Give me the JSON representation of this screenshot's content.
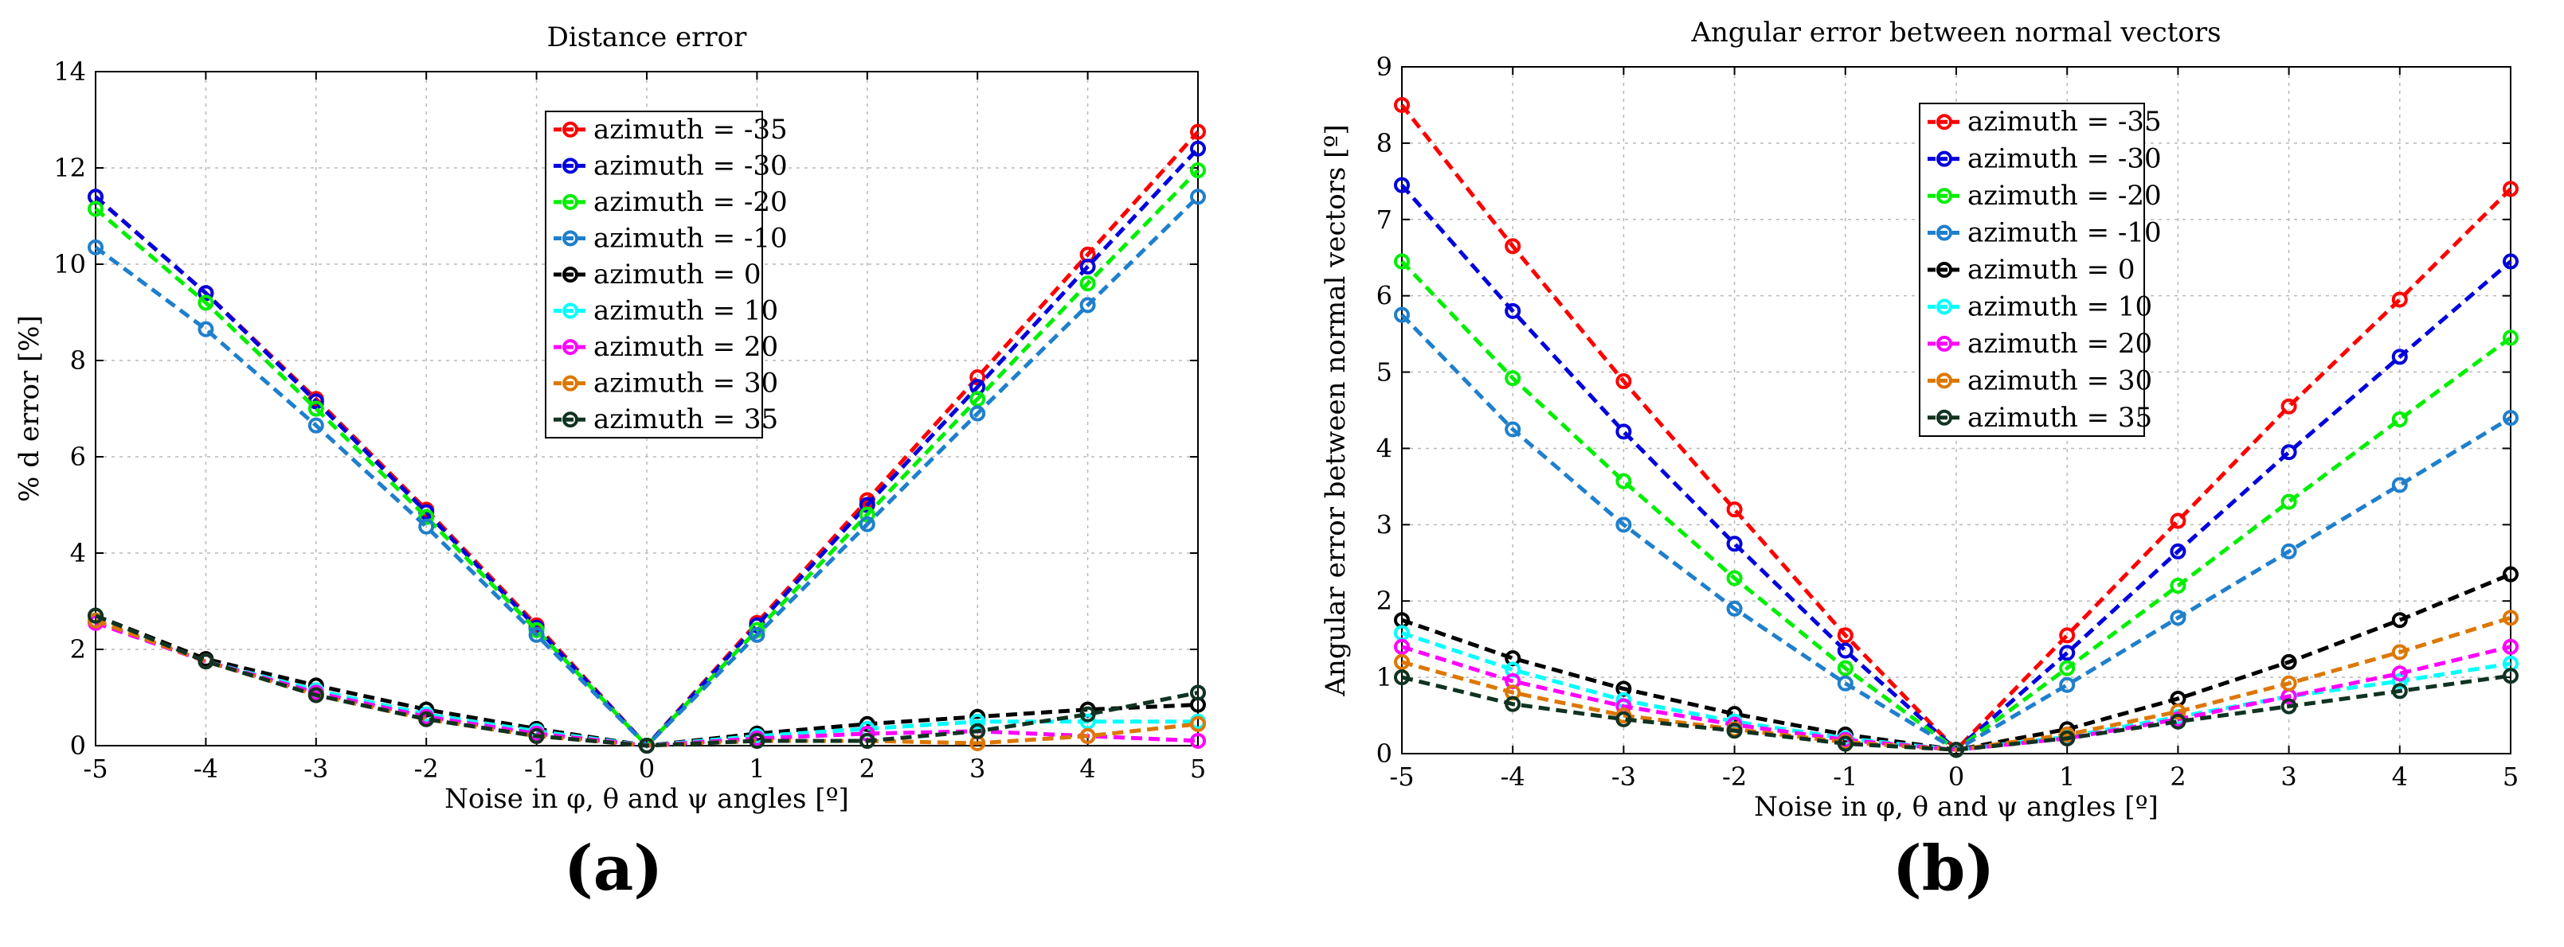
{
  "chart_data": [
    {
      "type": "line",
      "panel_label": "a",
      "title": "Distance error",
      "xlabel": "Noise in φ, θ and ψ angles [º]",
      "ylabel": "% d error [%]",
      "xlim": [
        -5,
        5
      ],
      "ylim": [
        0,
        14
      ],
      "xticks": [
        -5,
        -4,
        -3,
        -2,
        -1,
        0,
        1,
        2,
        3,
        4,
        5
      ],
      "yticks": [
        0,
        2,
        4,
        6,
        8,
        10,
        12,
        14
      ],
      "grid": true,
      "legend_position": "top-center",
      "x": [
        -5,
        -4,
        -3,
        -2,
        -1,
        0,
        1,
        2,
        3,
        4,
        5
      ],
      "series": [
        {
          "name": "azimuth = -35",
          "color": "#ff0000",
          "values": [
            11.4,
            9.4,
            7.2,
            4.9,
            2.5,
            0,
            2.55,
            5.1,
            7.65,
            10.2,
            12.75
          ]
        },
        {
          "name": "azimuth = -30",
          "color": "#0000dd",
          "values": [
            11.4,
            9.4,
            7.15,
            4.85,
            2.45,
            0,
            2.5,
            5.0,
            7.45,
            9.95,
            12.4
          ]
        },
        {
          "name": "azimuth = -20",
          "color": "#00ee00",
          "values": [
            11.15,
            9.2,
            7.0,
            4.75,
            2.4,
            0,
            2.4,
            4.8,
            7.2,
            9.6,
            11.95
          ]
        },
        {
          "name": "azimuth = -10",
          "color": "#1f7fcc",
          "values": [
            10.35,
            8.65,
            6.65,
            4.55,
            2.3,
            0,
            2.3,
            4.6,
            6.9,
            9.15,
            11.4
          ]
        },
        {
          "name": "azimuth = 0",
          "color": "#000000",
          "values": [
            2.7,
            1.8,
            1.25,
            0.75,
            0.35,
            0,
            0.25,
            0.45,
            0.6,
            0.75,
            0.85
          ]
        },
        {
          "name": "azimuth = 10",
          "color": "#00ffff",
          "values": [
            2.6,
            1.75,
            1.15,
            0.65,
            0.3,
            0,
            0.2,
            0.35,
            0.5,
            0.5,
            0.5
          ]
        },
        {
          "name": "azimuth = 20",
          "color": "#ff00ff",
          "values": [
            2.55,
            1.75,
            1.1,
            0.6,
            0.25,
            0,
            0.15,
            0.25,
            0.3,
            0.2,
            0.1
          ]
        },
        {
          "name": "azimuth = 30",
          "color": "#dd7700",
          "values": [
            2.6,
            1.75,
            1.05,
            0.55,
            0.2,
            0,
            0.1,
            0.1,
            0.05,
            0.2,
            0.45
          ]
        },
        {
          "name": "azimuth = 35",
          "color": "#113322",
          "values": [
            2.7,
            1.75,
            1.05,
            0.55,
            0.2,
            0,
            0.1,
            0.1,
            0.3,
            0.65,
            1.1
          ]
        }
      ]
    },
    {
      "type": "line",
      "panel_label": "b",
      "title": "Angular error between normal vectors",
      "xlabel": "Noise in φ, θ and ψ angles [º]",
      "ylabel": "Angular error between normal vectors [º]",
      "xlim": [
        -5,
        5
      ],
      "ylim": [
        0,
        9
      ],
      "xticks": [
        -5,
        -4,
        -3,
        -2,
        -1,
        0,
        1,
        2,
        3,
        4,
        5
      ],
      "yticks": [
        0,
        1,
        2,
        3,
        4,
        5,
        6,
        7,
        8,
        9
      ],
      "grid": true,
      "legend_position": "top-center",
      "x": [
        -5,
        -4,
        -3,
        -2,
        -1,
        0,
        1,
        2,
        3,
        4,
        5
      ],
      "series": [
        {
          "name": "azimuth = -35",
          "color": "#ff0000",
          "values": [
            8.5,
            6.65,
            4.88,
            3.2,
            1.55,
            0.05,
            1.55,
            3.05,
            4.55,
            5.95,
            7.4
          ]
        },
        {
          "name": "azimuth = -30",
          "color": "#0000dd",
          "values": [
            7.45,
            5.8,
            4.22,
            2.75,
            1.35,
            0.05,
            1.32,
            2.65,
            3.95,
            5.2,
            6.45
          ]
        },
        {
          "name": "azimuth = -20",
          "color": "#00ee00",
          "values": [
            6.45,
            4.92,
            3.57,
            2.3,
            1.12,
            0.05,
            1.12,
            2.2,
            3.3,
            4.38,
            5.45
          ]
        },
        {
          "name": "azimuth = -10",
          "color": "#1f7fcc",
          "values": [
            5.75,
            4.25,
            3.0,
            1.9,
            0.92,
            0.05,
            0.9,
            1.78,
            2.65,
            3.52,
            4.4
          ]
        },
        {
          "name": "azimuth = 0",
          "color": "#000000",
          "values": [
            1.75,
            1.25,
            0.85,
            0.52,
            0.25,
            0.05,
            0.32,
            0.72,
            1.2,
            1.75,
            2.35
          ]
        },
        {
          "name": "azimuth = 10",
          "color": "#00ffff",
          "values": [
            1.58,
            1.1,
            0.7,
            0.42,
            0.2,
            0.05,
            0.22,
            0.48,
            0.75,
            0.95,
            1.18
          ]
        },
        {
          "name": "azimuth = 20",
          "color": "#ff00ff",
          "values": [
            1.4,
            0.95,
            0.62,
            0.38,
            0.18,
            0.05,
            0.2,
            0.45,
            0.75,
            1.05,
            1.4
          ]
        },
        {
          "name": "azimuth = 30",
          "color": "#dd7700",
          "values": [
            1.2,
            0.8,
            0.5,
            0.32,
            0.15,
            0.05,
            0.25,
            0.55,
            0.92,
            1.33,
            1.78
          ]
        },
        {
          "name": "azimuth = 35",
          "color": "#113322",
          "values": [
            1.0,
            0.65,
            0.45,
            0.3,
            0.13,
            0.05,
            0.2,
            0.42,
            0.62,
            0.82,
            1.02
          ]
        }
      ]
    }
  ]
}
